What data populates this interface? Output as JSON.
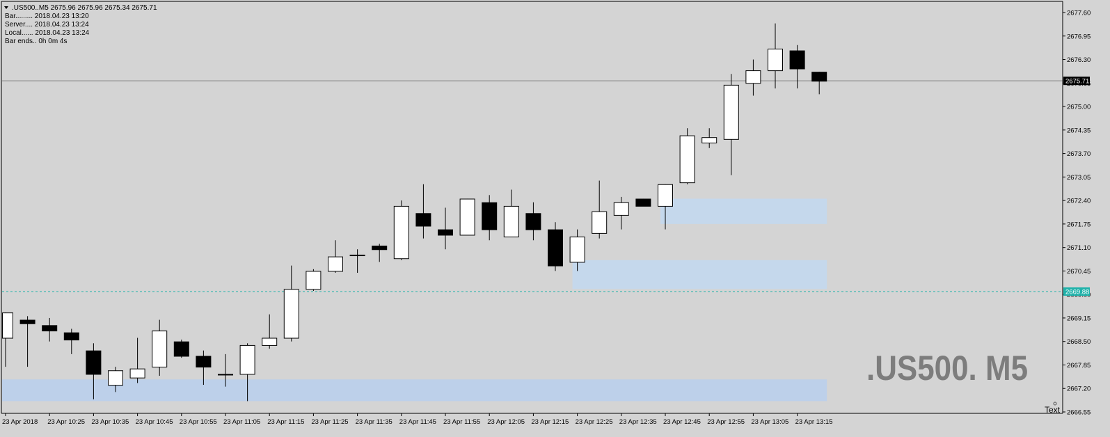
{
  "header": {
    "symbol_line": ".US500..M5  2675.96 2675.96 2675.34 2675.71",
    "info_lines": [
      "Bar......... 2018.04.23 13:20",
      "Server.... 2018.04.23 13:24",
      "Local...... 2018.04.23 13:24",
      "Bar ends.. 0h 0m 4s"
    ]
  },
  "watermark": ".US500. M5",
  "corner_label": "Text",
  "colors": {
    "background": "#d4d4d4",
    "bull_body": "#ffffff",
    "bear_body": "#000000",
    "zone_fill": "#c5d8ec",
    "zone_fill_bottom": "#bdd0ea",
    "price_line": "#808080",
    "dotted_line": "#20b2aa",
    "price_tag_bg": "#000000",
    "dotted_tag_bg": "#20b2aa"
  },
  "chart_data": {
    "type": "candlestick",
    "title": ".US500..M5",
    "ylim": [
      2666.55,
      2677.6
    ],
    "y_ticks": [
      "2677.60",
      "2676.95",
      "2676.30",
      "2675.65",
      "2675.00",
      "2674.35",
      "2673.70",
      "2673.05",
      "2672.40",
      "2671.75",
      "2671.10",
      "2670.45",
      "2669.80",
      "2669.15",
      "2668.50",
      "2667.85",
      "2667.20",
      "2666.55"
    ],
    "x_ticks": [
      "23 Apr 2018",
      "23 Apr 10:25",
      "23 Apr 10:35",
      "23 Apr 10:45",
      "23 Apr 10:55",
      "23 Apr 11:05",
      "23 Apr 11:15",
      "23 Apr 11:25",
      "23 Apr 11:35",
      "23 Apr 11:45",
      "23 Apr 11:55",
      "23 Apr 12:05",
      "23 Apr 12:15",
      "23 Apr 12:25",
      "23 Apr 12:35",
      "23 Apr 12:45",
      "23 Apr 12:55",
      "23 Apr 13:05",
      "23 Apr 13:15"
    ],
    "current_price": "2675.71",
    "dotted_level": "2669.88",
    "candles": [
      {
        "o": 2668.6,
        "h": 2669.3,
        "l": 2667.8,
        "c": 2669.3
      },
      {
        "o": 2669.1,
        "h": 2669.2,
        "l": 2667.8,
        "c": 2669.0
      },
      {
        "o": 2668.95,
        "h": 2669.15,
        "l": 2668.5,
        "c": 2668.8
      },
      {
        "o": 2668.75,
        "h": 2668.85,
        "l": 2668.15,
        "c": 2668.55
      },
      {
        "o": 2668.25,
        "h": 2668.45,
        "l": 2666.9,
        "c": 2667.6
      },
      {
        "o": 2667.3,
        "h": 2667.8,
        "l": 2667.1,
        "c": 2667.7
      },
      {
        "o": 2667.5,
        "h": 2668.6,
        "l": 2667.35,
        "c": 2667.75
      },
      {
        "o": 2667.8,
        "h": 2669.1,
        "l": 2667.55,
        "c": 2668.8
      },
      {
        "o": 2668.5,
        "h": 2668.55,
        "l": 2668.05,
        "c": 2668.1
      },
      {
        "o": 2668.1,
        "h": 2668.25,
        "l": 2667.3,
        "c": 2667.8
      },
      {
        "o": 2667.6,
        "h": 2668.15,
        "l": 2667.25,
        "c": 2667.6
      },
      {
        "o": 2667.6,
        "h": 2668.45,
        "l": 2666.85,
        "c": 2668.4
      },
      {
        "o": 2668.4,
        "h": 2669.25,
        "l": 2668.3,
        "c": 2668.6
      },
      {
        "o": 2668.6,
        "h": 2670.6,
        "l": 2668.5,
        "c": 2669.95
      },
      {
        "o": 2669.95,
        "h": 2670.5,
        "l": 2669.9,
        "c": 2670.45
      },
      {
        "o": 2670.45,
        "h": 2671.3,
        "l": 2670.4,
        "c": 2670.85
      },
      {
        "o": 2670.9,
        "h": 2671.05,
        "l": 2670.4,
        "c": 2670.9
      },
      {
        "o": 2671.15,
        "h": 2671.2,
        "l": 2670.7,
        "c": 2671.05
      },
      {
        "o": 2670.8,
        "h": 2672.4,
        "l": 2670.75,
        "c": 2672.25
      },
      {
        "o": 2672.05,
        "h": 2672.85,
        "l": 2671.35,
        "c": 2671.7
      },
      {
        "o": 2671.6,
        "h": 2672.2,
        "l": 2671.05,
        "c": 2671.45
      },
      {
        "o": 2671.45,
        "h": 2672.45,
        "l": 2671.45,
        "c": 2672.45
      },
      {
        "o": 2672.35,
        "h": 2672.55,
        "l": 2671.3,
        "c": 2671.6
      },
      {
        "o": 2671.4,
        "h": 2672.7,
        "l": 2671.4,
        "c": 2672.25
      },
      {
        "o": 2672.05,
        "h": 2672.35,
        "l": 2671.3,
        "c": 2671.6
      },
      {
        "o": 2671.6,
        "h": 2671.8,
        "l": 2670.45,
        "c": 2670.6
      },
      {
        "o": 2670.7,
        "h": 2671.6,
        "l": 2670.45,
        "c": 2671.4
      },
      {
        "o": 2671.5,
        "h": 2672.95,
        "l": 2671.35,
        "c": 2672.1
      },
      {
        "o": 2672.0,
        "h": 2672.5,
        "l": 2671.6,
        "c": 2672.35
      },
      {
        "o": 2672.45,
        "h": 2672.45,
        "l": 2672.25,
        "c": 2672.25
      },
      {
        "o": 2672.25,
        "h": 2672.85,
        "l": 2671.6,
        "c": 2672.85
      },
      {
        "o": 2672.9,
        "h": 2674.4,
        "l": 2672.85,
        "c": 2674.2
      },
      {
        "o": 2674.0,
        "h": 2674.4,
        "l": 2673.85,
        "c": 2674.15
      },
      {
        "o": 2674.1,
        "h": 2675.9,
        "l": 2673.1,
        "c": 2675.6
      },
      {
        "o": 2675.65,
        "h": 2676.3,
        "l": 2675.3,
        "c": 2676.0
      },
      {
        "o": 2676.0,
        "h": 2677.3,
        "l": 2675.5,
        "c": 2676.6
      },
      {
        "o": 2676.55,
        "h": 2676.7,
        "l": 2675.5,
        "c": 2676.05
      },
      {
        "o": 2675.96,
        "h": 2675.96,
        "l": 2675.34,
        "c": 2675.71
      }
    ],
    "zones": [
      {
        "y1": 2667.45,
        "y2": 2666.85,
        "from": 0,
        "to": 37,
        "fill": "zone_fill_bottom"
      },
      {
        "y1": 2670.75,
        "y2": 2669.95,
        "from": 26,
        "to": 37,
        "fill": "zone_fill"
      },
      {
        "y1": 2672.45,
        "y2": 2671.75,
        "from": 30,
        "to": 37,
        "fill": "zone_fill"
      }
    ]
  }
}
